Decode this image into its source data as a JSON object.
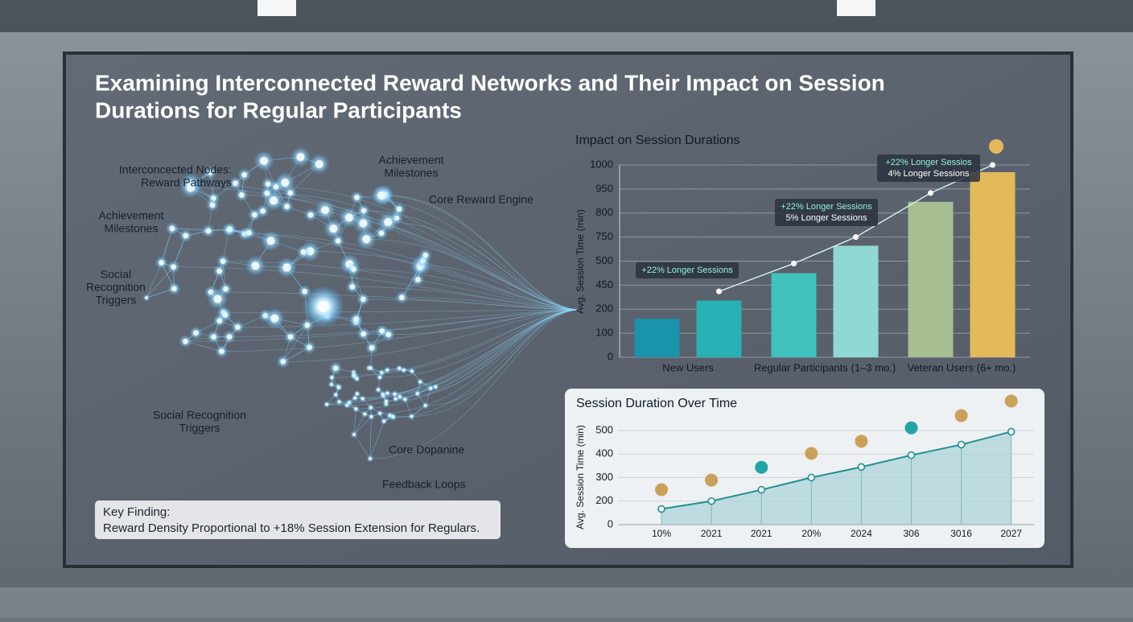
{
  "title": [
    "Examining Interconnected Reward Networks and Their Impact on Session",
    "Durations for Regular Participants"
  ],
  "network": {
    "labels": [
      {
        "lines": [
          "Interconcected Nodes:",
          "Reward Pathways"
        ]
      },
      {
        "lines": [
          "Achievement",
          "Milestones"
        ]
      },
      {
        "lines": [
          "Core Reward Engine"
        ]
      },
      {
        "lines": [
          "Achievement",
          "Milestones"
        ]
      },
      {
        "lines": [
          "Social",
          "Recognition",
          "Triggers"
        ]
      },
      {
        "lines": [
          "Social Recognition",
          "Triggers"
        ]
      },
      {
        "lines": [
          "Core Dopanine"
        ]
      },
      {
        "lines": [
          "Feedback Loops"
        ]
      }
    ]
  },
  "key_finding": {
    "heading": "Key Finding:",
    "text": "Reward Density Proportional to +18% Session Extension for Regulars."
  },
  "chart_data": [
    {
      "type": "bar",
      "title": "Impact on Session Durations",
      "y_label": "Avg. Session Time (min)",
      "categories": [
        "New Users",
        "Regular Participants (1–3 mo.)",
        "Veteran Users (6+ mo.)"
      ],
      "series": [
        {
          "colors": [
            "#1a93ad",
            "#3ec2bb",
            "#a7be92"
          ],
          "values": [
            160,
            475,
            870
          ]
        },
        {
          "colors": [
            "#27b1b4",
            "#8fd8d3",
            "#e4b95c"
          ],
          "values": [
            290,
            660,
            985
          ]
        }
      ],
      "trend": {
        "color": "#cfeee8",
        "values": [
          null,
          385,
          495,
          750,
          925,
          1000
        ]
      },
      "annotations": [
        {
          "lines": [
            "+22% Longer Sessions"
          ]
        },
        {
          "lines": [
            "+22% Longer Sessions",
            "5% Longer Sessions"
          ]
        },
        {
          "lines": [
            "+22% Longer Sessios",
            "4% Longer Sessions"
          ]
        }
      ],
      "ylim": [
        0,
        1000
      ],
      "yticks": [
        0,
        100,
        200,
        450,
        500,
        750,
        800,
        950,
        1000
      ],
      "grid": true
    },
    {
      "type": "line",
      "title": "Session Duration Over Time",
      "y_label": "Avg. Session Time (min)",
      "categories": [
        "10%",
        "2021",
        "2021",
        "20%",
        "2024",
        "306",
        "3016",
        "2027"
      ],
      "values": [
        133,
        200,
        248,
        300,
        345,
        395,
        440,
        495
      ],
      "color": "#1f8f96",
      "fill": "#a9d3d6",
      "ylim": [
        0,
        500
      ],
      "yticks": [
        0,
        200,
        300,
        400,
        500
      ],
      "grid": true
    }
  ]
}
